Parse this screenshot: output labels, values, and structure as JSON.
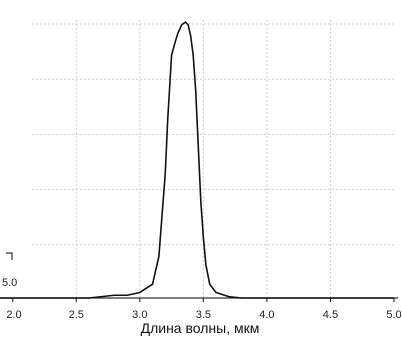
{
  "chart_data": {
    "type": "line",
    "xlabel": "Длина волны, мкм",
    "ylabel": "",
    "xlim": [
      1.9,
      5.0
    ],
    "ylim": [
      0,
      1.0
    ],
    "x_ticks": [
      {
        "value": 2.0,
        "label": "2.0"
      },
      {
        "value": 2.5,
        "label": "2.5"
      },
      {
        "value": 3.0,
        "label": "3.0"
      },
      {
        "value": 3.5,
        "label": "3.5"
      },
      {
        "value": 4.0,
        "label": "4.0"
      },
      {
        "value": 4.5,
        "label": "4.5"
      },
      {
        "value": 5.0,
        "label": "5.0"
      }
    ],
    "y_grid": [
      0.2,
      0.4,
      0.6,
      0.8,
      1.0
    ],
    "y_tick_labels": [
      {
        "value": 0.1,
        "label": "5.0"
      }
    ],
    "grid": true,
    "series": [
      {
        "color": "#111111",
        "x": [
          1.9,
          2.6,
          2.8,
          2.9,
          3.0,
          3.1,
          3.15,
          3.2,
          3.22,
          3.25,
          3.28,
          3.3,
          3.33,
          3.36,
          3.38,
          3.4,
          3.42,
          3.44,
          3.46,
          3.48,
          3.5,
          3.52,
          3.55,
          3.6,
          3.7,
          3.8,
          4.0,
          4.5,
          5.0
        ],
        "y": [
          0.0,
          0.0,
          0.01,
          0.01,
          0.02,
          0.05,
          0.15,
          0.45,
          0.65,
          0.88,
          0.93,
          0.96,
          0.99,
          1.0,
          0.99,
          0.95,
          0.88,
          0.75,
          0.55,
          0.35,
          0.22,
          0.12,
          0.05,
          0.02,
          0.005,
          0.0,
          0.0,
          0.0,
          0.0
        ]
      }
    ]
  }
}
